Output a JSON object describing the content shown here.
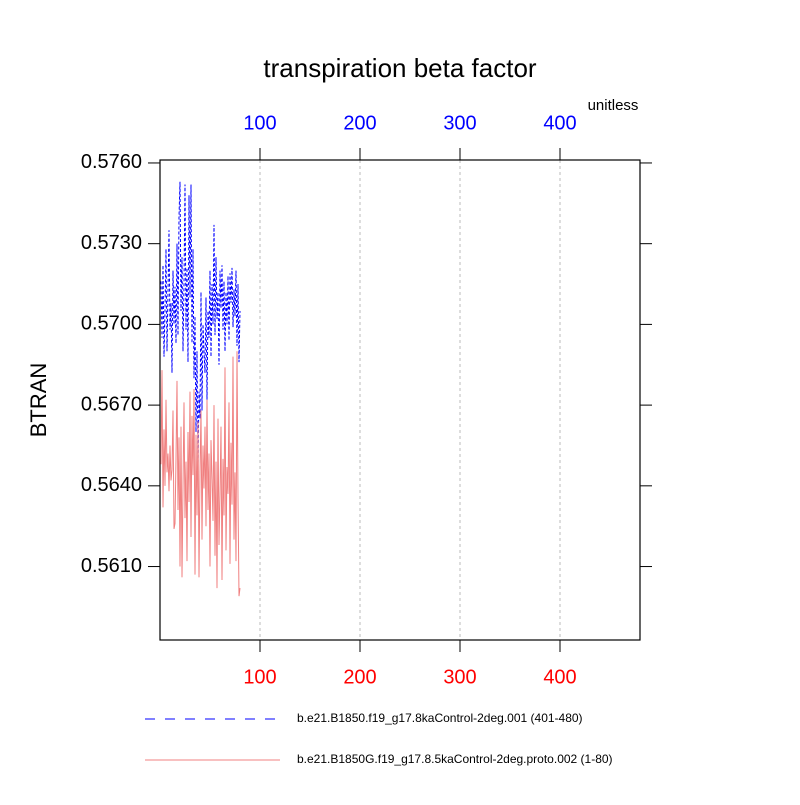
{
  "chart_data": {
    "type": "line",
    "title": "transpiration beta factor",
    "ylabel": "BTRAN",
    "annotation": "unitless",
    "x": [
      1,
      2,
      3,
      4,
      5,
      6,
      7,
      8,
      9,
      10,
      11,
      12,
      13,
      14,
      15,
      16,
      17,
      18,
      19,
      20,
      21,
      22,
      23,
      24,
      25,
      26,
      27,
      28,
      29,
      30,
      31,
      32,
      33,
      34,
      35,
      36,
      37,
      38,
      39,
      40,
      41,
      42,
      43,
      44,
      45,
      46,
      47,
      48,
      49,
      50,
      51,
      52,
      53,
      54,
      55,
      56,
      57,
      58,
      59,
      60,
      61,
      62,
      63,
      64,
      65,
      66,
      67,
      68,
      69,
      70,
      71,
      72,
      73,
      74,
      75,
      76,
      77,
      78,
      79,
      80
    ],
    "series": [
      {
        "name": "b.e21.B1850.f19_g17.8kaControl-2deg.001 (401-480)",
        "color": "#0000ff",
        "dashed": true,
        "values": [
          0.5716,
          0.5695,
          0.5722,
          0.5688,
          0.5705,
          0.5728,
          0.569,
          0.5712,
          0.5735,
          0.5698,
          0.5708,
          0.5682,
          0.572,
          0.57,
          0.5714,
          0.5693,
          0.573,
          0.5696,
          0.574,
          0.5753,
          0.5705,
          0.5725,
          0.569,
          0.5715,
          0.5752,
          0.5698,
          0.5721,
          0.5686,
          0.5748,
          0.571,
          0.5752,
          0.5693,
          0.5728,
          0.568,
          0.5703,
          0.566,
          0.569,
          0.5648,
          0.5675,
          0.5665,
          0.5712,
          0.5668,
          0.57,
          0.569,
          0.5682,
          0.571,
          0.5672,
          0.5705,
          0.5695,
          0.572,
          0.5688,
          0.5715,
          0.57,
          0.5737,
          0.5696,
          0.5725,
          0.5702,
          0.5712,
          0.5685,
          0.572,
          0.5706,
          0.5722,
          0.5698,
          0.5716,
          0.569,
          0.5712,
          0.57,
          0.5718,
          0.5694,
          0.5719,
          0.5708,
          0.5721,
          0.5699,
          0.5713,
          0.5703,
          0.572,
          0.5692,
          0.5715,
          0.5686,
          0.5705
        ]
      },
      {
        "name": "b.e21.B1850G.f19_g17.8.5kaControl-2deg.proto.002 (1-80)",
        "color": "#f08080",
        "dashed": false,
        "values": [
          0.5648,
          0.5683,
          0.5632,
          0.5661,
          0.564,
          0.5672,
          0.5645,
          0.5652,
          0.5638,
          0.5655,
          0.5642,
          0.5646,
          0.5668,
          0.5624,
          0.5626,
          0.565,
          0.5679,
          0.5631,
          0.5658,
          0.561,
          0.5662,
          0.5606,
          0.564,
          0.5671,
          0.5628,
          0.5649,
          0.5612,
          0.566,
          0.5634,
          0.5675,
          0.5621,
          0.5666,
          0.5644,
          0.5676,
          0.5607,
          0.5659,
          0.5629,
          0.5664,
          0.5606,
          0.5645,
          0.5668,
          0.562,
          0.5655,
          0.5639,
          0.5662,
          0.5625,
          0.5672,
          0.5631,
          0.5652,
          0.561,
          0.5657,
          0.5643,
          0.5627,
          0.567,
          0.5614,
          0.5649,
          0.5602,
          0.5665,
          0.5618,
          0.5637,
          0.5662,
          0.5605,
          0.565,
          0.5629,
          0.5684,
          0.5616,
          0.5647,
          0.5637,
          0.5671,
          0.5611,
          0.5656,
          0.5633,
          0.5688,
          0.562,
          0.5645,
          0.5612,
          0.569,
          0.5636,
          0.5599,
          0.5602
        ]
      }
    ],
    "xlim": [
      0,
      480
    ],
    "xticks": [
      100,
      200,
      300,
      400
    ],
    "x_tick_color": "#ff0000",
    "x2_tick_color": "#0000ff",
    "ylim": [
      0.55827,
      0.57611
    ],
    "yticks": [
      {
        "value": 0.561,
        "label": "0.5610"
      },
      {
        "value": 0.564,
        "label": "0.5640"
      },
      {
        "value": 0.567,
        "label": "0.5670"
      },
      {
        "value": 0.57,
        "label": "0.5700"
      },
      {
        "value": 0.573,
        "label": "0.5730"
      },
      {
        "value": 0.576,
        "label": "0.5760"
      }
    ],
    "grid": true
  }
}
